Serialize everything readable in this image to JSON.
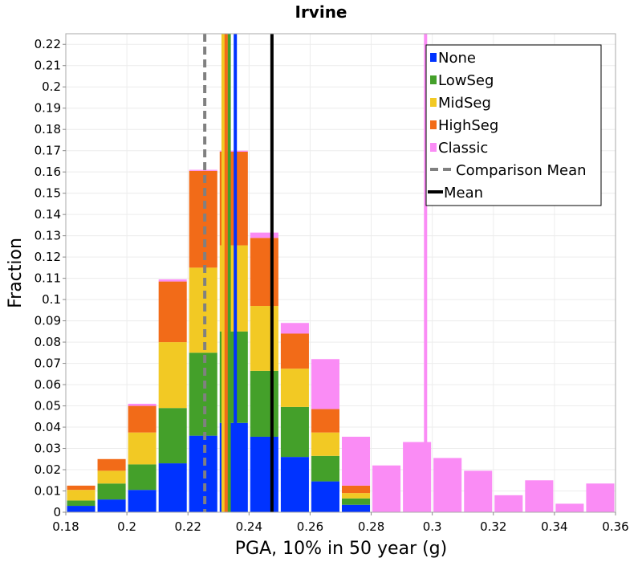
{
  "chart_data": {
    "type": "bar",
    "title": "Irvine",
    "xlabel": "PGA, 10% in 50 year (g)",
    "ylabel": "Fraction",
    "xlim": [
      0.18,
      0.36
    ],
    "ylim": [
      0,
      0.225
    ],
    "grid": true,
    "legend_position": "top-right",
    "x_ticks": [
      "0.18",
      "0.2",
      "0.22",
      "0.24",
      "0.26",
      "0.28",
      "0.3",
      "0.32",
      "0.34",
      "0.36"
    ],
    "y_ticks": [
      "0",
      "0.01",
      "0.02",
      "0.03",
      "0.04",
      "0.05",
      "0.06",
      "0.07",
      "0.08",
      "0.09",
      "0.1",
      "0.11",
      "0.12",
      "0.13",
      "0.14",
      "0.15",
      "0.16",
      "0.17",
      "0.18",
      "0.19",
      "0.2",
      "0.21",
      "0.22"
    ],
    "bin_width": 0.01,
    "bin_starts": [
      0.18,
      0.19,
      0.2,
      0.21,
      0.22,
      0.23,
      0.24,
      0.25,
      0.26,
      0.27,
      0.28,
      0.29,
      0.3,
      0.31,
      0.32,
      0.33,
      0.34,
      0.35
    ],
    "series": [
      {
        "name": "None",
        "color": "#0033ff",
        "values": [
          0.003,
          0.006,
          0.0105,
          0.023,
          0.036,
          0.042,
          0.0355,
          0.026,
          0.0145,
          0.0035,
          0,
          0,
          0,
          0,
          0,
          0,
          0,
          0
        ]
      },
      {
        "name": "LowSeg",
        "color": "#44a02a",
        "values": [
          0.0025,
          0.0075,
          0.012,
          0.026,
          0.039,
          0.043,
          0.031,
          0.0235,
          0.012,
          0.003,
          0,
          0,
          0,
          0,
          0,
          0,
          0,
          0
        ]
      },
      {
        "name": "MidSeg",
        "color": "#f2c924",
        "values": [
          0.005,
          0.006,
          0.015,
          0.031,
          0.04,
          0.0405,
          0.0305,
          0.018,
          0.011,
          0.0025,
          0,
          0,
          0,
          0,
          0,
          0,
          0,
          0
        ]
      },
      {
        "name": "HighSeg",
        "color": "#f26b18",
        "values": [
          0.002,
          0.0055,
          0.0125,
          0.0285,
          0.0455,
          0.044,
          0.032,
          0.0165,
          0.011,
          0.0035,
          0,
          0,
          0,
          0,
          0,
          0,
          0,
          0
        ]
      },
      {
        "name": "Classic",
        "color": "#fa8cf5",
        "values": [
          0,
          0,
          0.001,
          0.001,
          0.0005,
          0.0005,
          0.0025,
          0.005,
          0.0235,
          0.023,
          0.022,
          0.033,
          0.0255,
          0.0195,
          0.008,
          0.015,
          0.004,
          0.0135
        ]
      }
    ],
    "mean_lines": [
      {
        "series": "None",
        "color": "#0033ff",
        "x": 0.2355
      },
      {
        "series": "LowSeg",
        "color": "#44a02a",
        "x": 0.2335
      },
      {
        "series": "MidSeg",
        "color": "#f2c924",
        "x": 0.2315
      },
      {
        "series": "HighSeg",
        "color": "#f26b18",
        "x": 0.2325
      },
      {
        "series": "Classic",
        "color": "#fa8cf5",
        "x": 0.2978
      }
    ],
    "comparison_mean": {
      "label": "Comparison Mean",
      "color": "#808080",
      "x": 0.2255
    },
    "mean": {
      "label": "Mean",
      "color": "#000000",
      "x": 0.2475
    },
    "legend": [
      {
        "label": "None",
        "color": "#0033ff",
        "kind": "box"
      },
      {
        "label": "LowSeg",
        "color": "#44a02a",
        "kind": "box"
      },
      {
        "label": "MidSeg",
        "color": "#f2c924",
        "kind": "box"
      },
      {
        "label": "HighSeg",
        "color": "#f26b18",
        "kind": "box"
      },
      {
        "label": "Classic",
        "color": "#fa8cf5",
        "kind": "box"
      },
      {
        "label": "Comparison Mean",
        "color": "#808080",
        "kind": "dashed"
      },
      {
        "label": "Mean",
        "color": "#000000",
        "kind": "solid"
      }
    ]
  }
}
